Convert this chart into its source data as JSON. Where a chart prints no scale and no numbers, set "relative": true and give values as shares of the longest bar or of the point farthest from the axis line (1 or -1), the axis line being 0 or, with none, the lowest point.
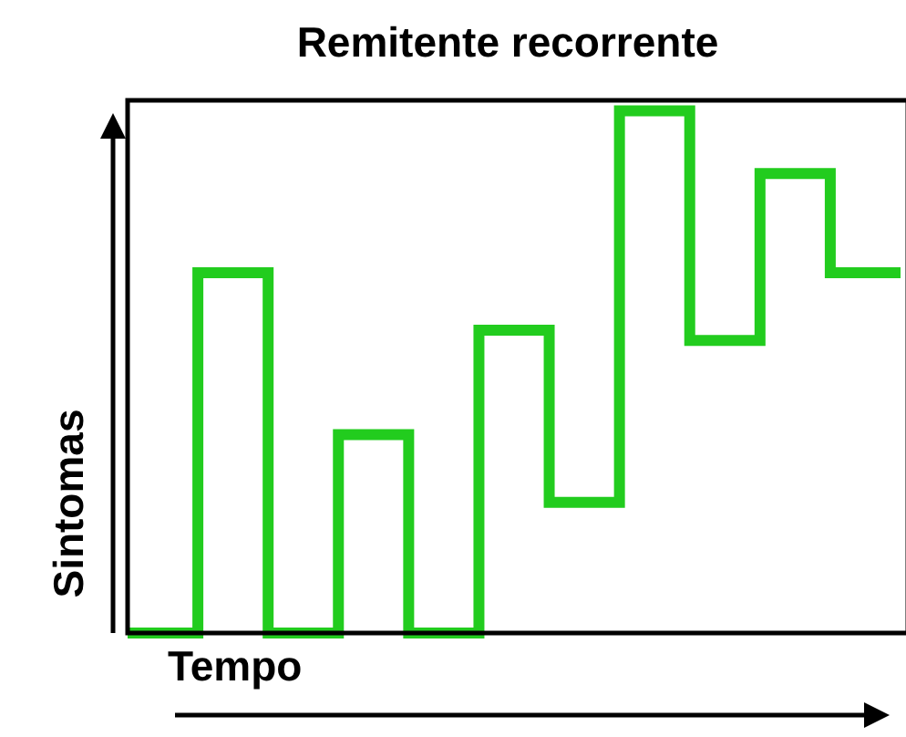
{
  "chart_data": {
    "type": "step",
    "title": "Remitente recorrente",
    "xlabel": "Tempo",
    "ylabel": "Sintomas",
    "categories": [
      null,
      null,
      null,
      null,
      null,
      null,
      null,
      null,
      null,
      null,
      null,
      null
    ],
    "values": [
      0,
      0.69,
      0,
      0.38,
      0,
      0.58,
      0.25,
      1,
      0.56,
      0.88,
      0.69,
      0.69
    ],
    "color": "#22cc1e",
    "relative": true,
    "marker": "none",
    "line_style": "solid",
    "legend": false,
    "tick_labels": false
  }
}
